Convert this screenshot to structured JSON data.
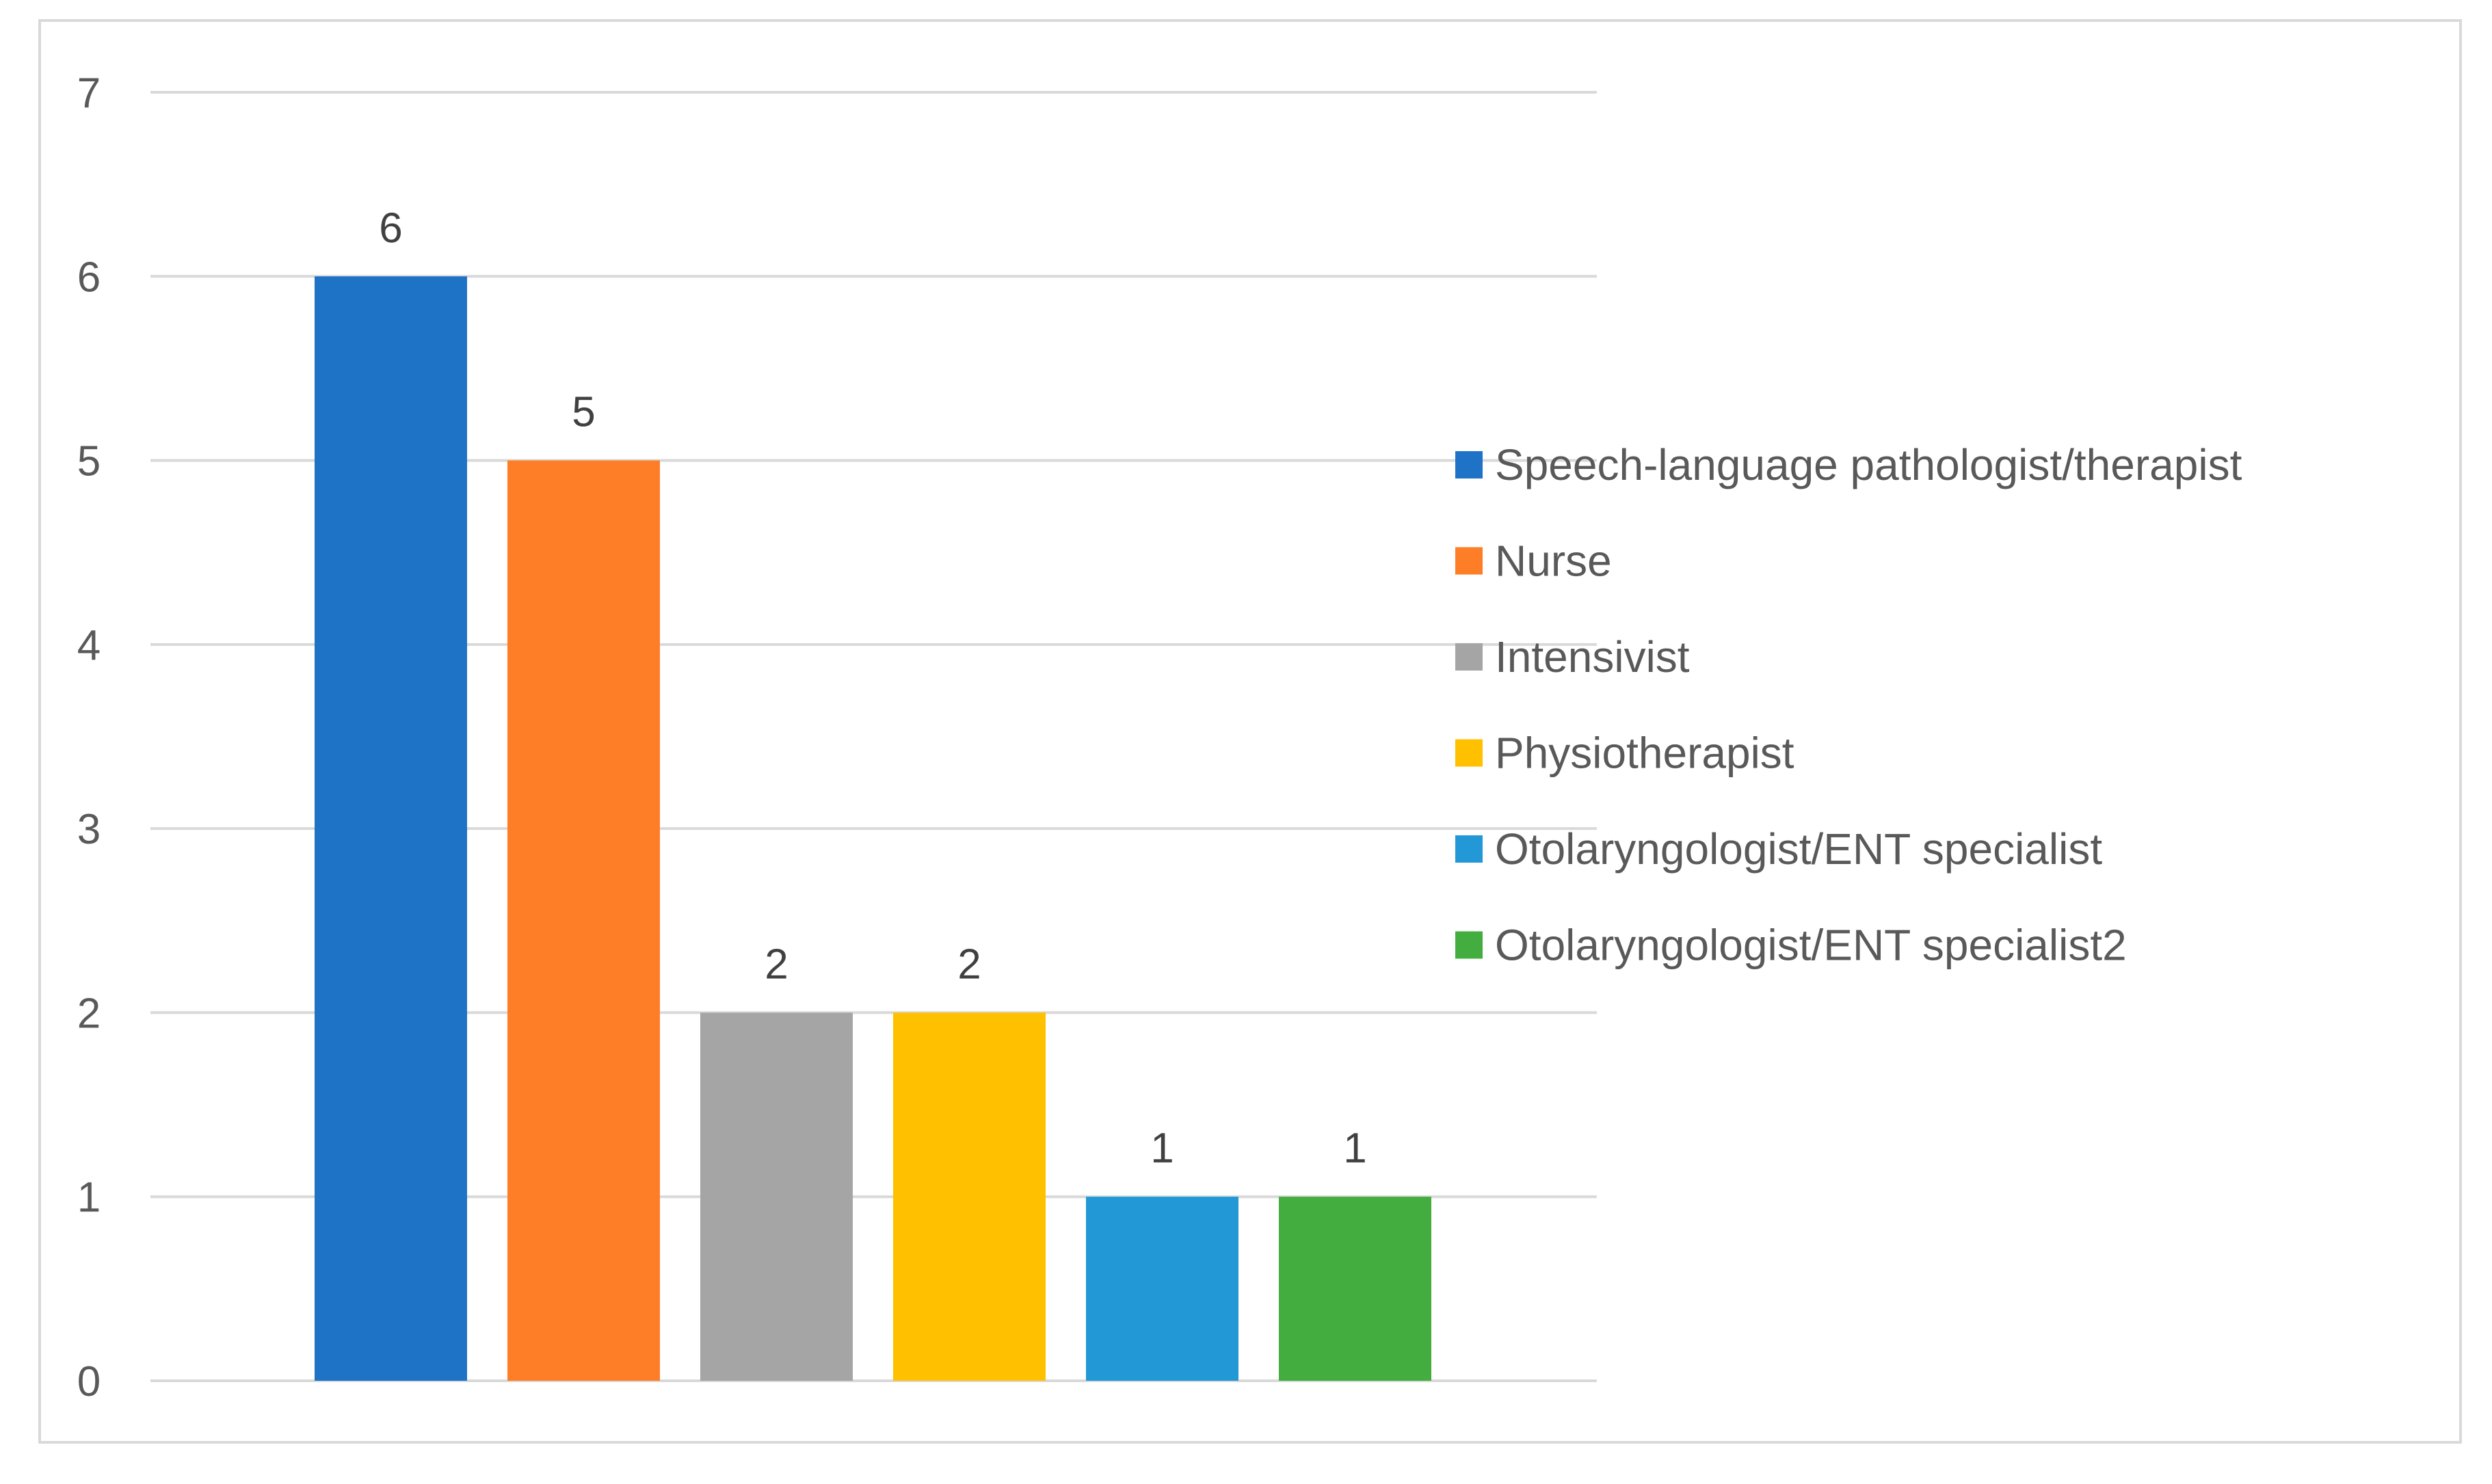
{
  "chart_data": {
    "type": "bar",
    "title": "",
    "xlabel": "",
    "ylabel": "",
    "ylim": [
      0,
      7
    ],
    "yticks": [
      0,
      1,
      2,
      3,
      4,
      5,
      6,
      7
    ],
    "grid": true,
    "legend_position": "right",
    "categories": [
      "Speech-language pathologist/therapist",
      "Nurse",
      "Intensivist",
      "Physiotherapist",
      "Otolaryngologist/ENT specialist",
      "Otolaryngologist/ENT specialist2"
    ],
    "values": [
      6,
      5,
      2,
      2,
      1,
      1
    ],
    "data_labels": [
      "6",
      "5",
      "2",
      "2",
      "1",
      "1"
    ],
    "colors": [
      "#1f73c7",
      "#fd7e26",
      "#a5a5a5",
      "#ffc000",
      "#2299d6",
      "#44ad3f"
    ],
    "gridline_color": "#d9d9d9",
    "frame_color": "#d9d9d9"
  }
}
